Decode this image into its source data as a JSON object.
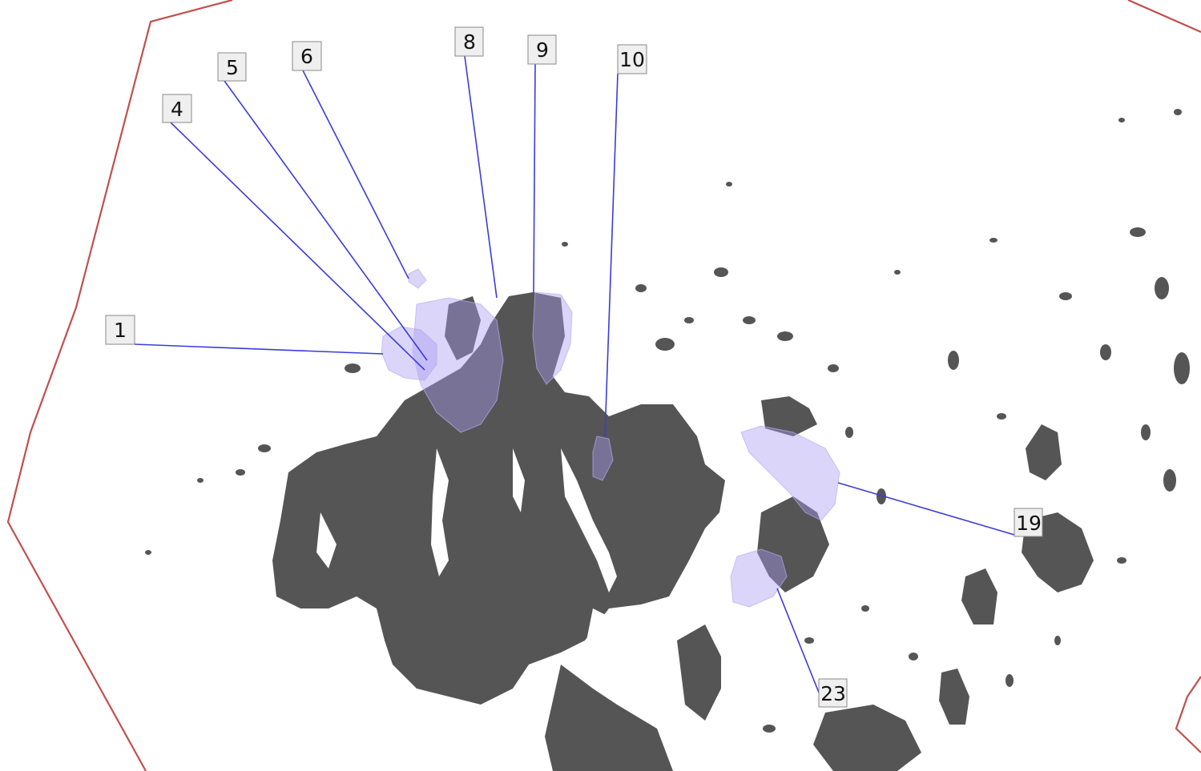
{
  "map": {
    "colors": {
      "land": "#555555",
      "water": "#ffffff",
      "boundary": "#c0504d",
      "leader": "#3b3bdc",
      "highlight": "#a99cf0",
      "label_fill": "#efefef"
    },
    "labels": {
      "l1": "1",
      "l4": "4",
      "l5": "5",
      "l6": "6",
      "l8": "8",
      "l9": "9",
      "l10": "10",
      "l19": "19",
      "l23": "23"
    }
  }
}
